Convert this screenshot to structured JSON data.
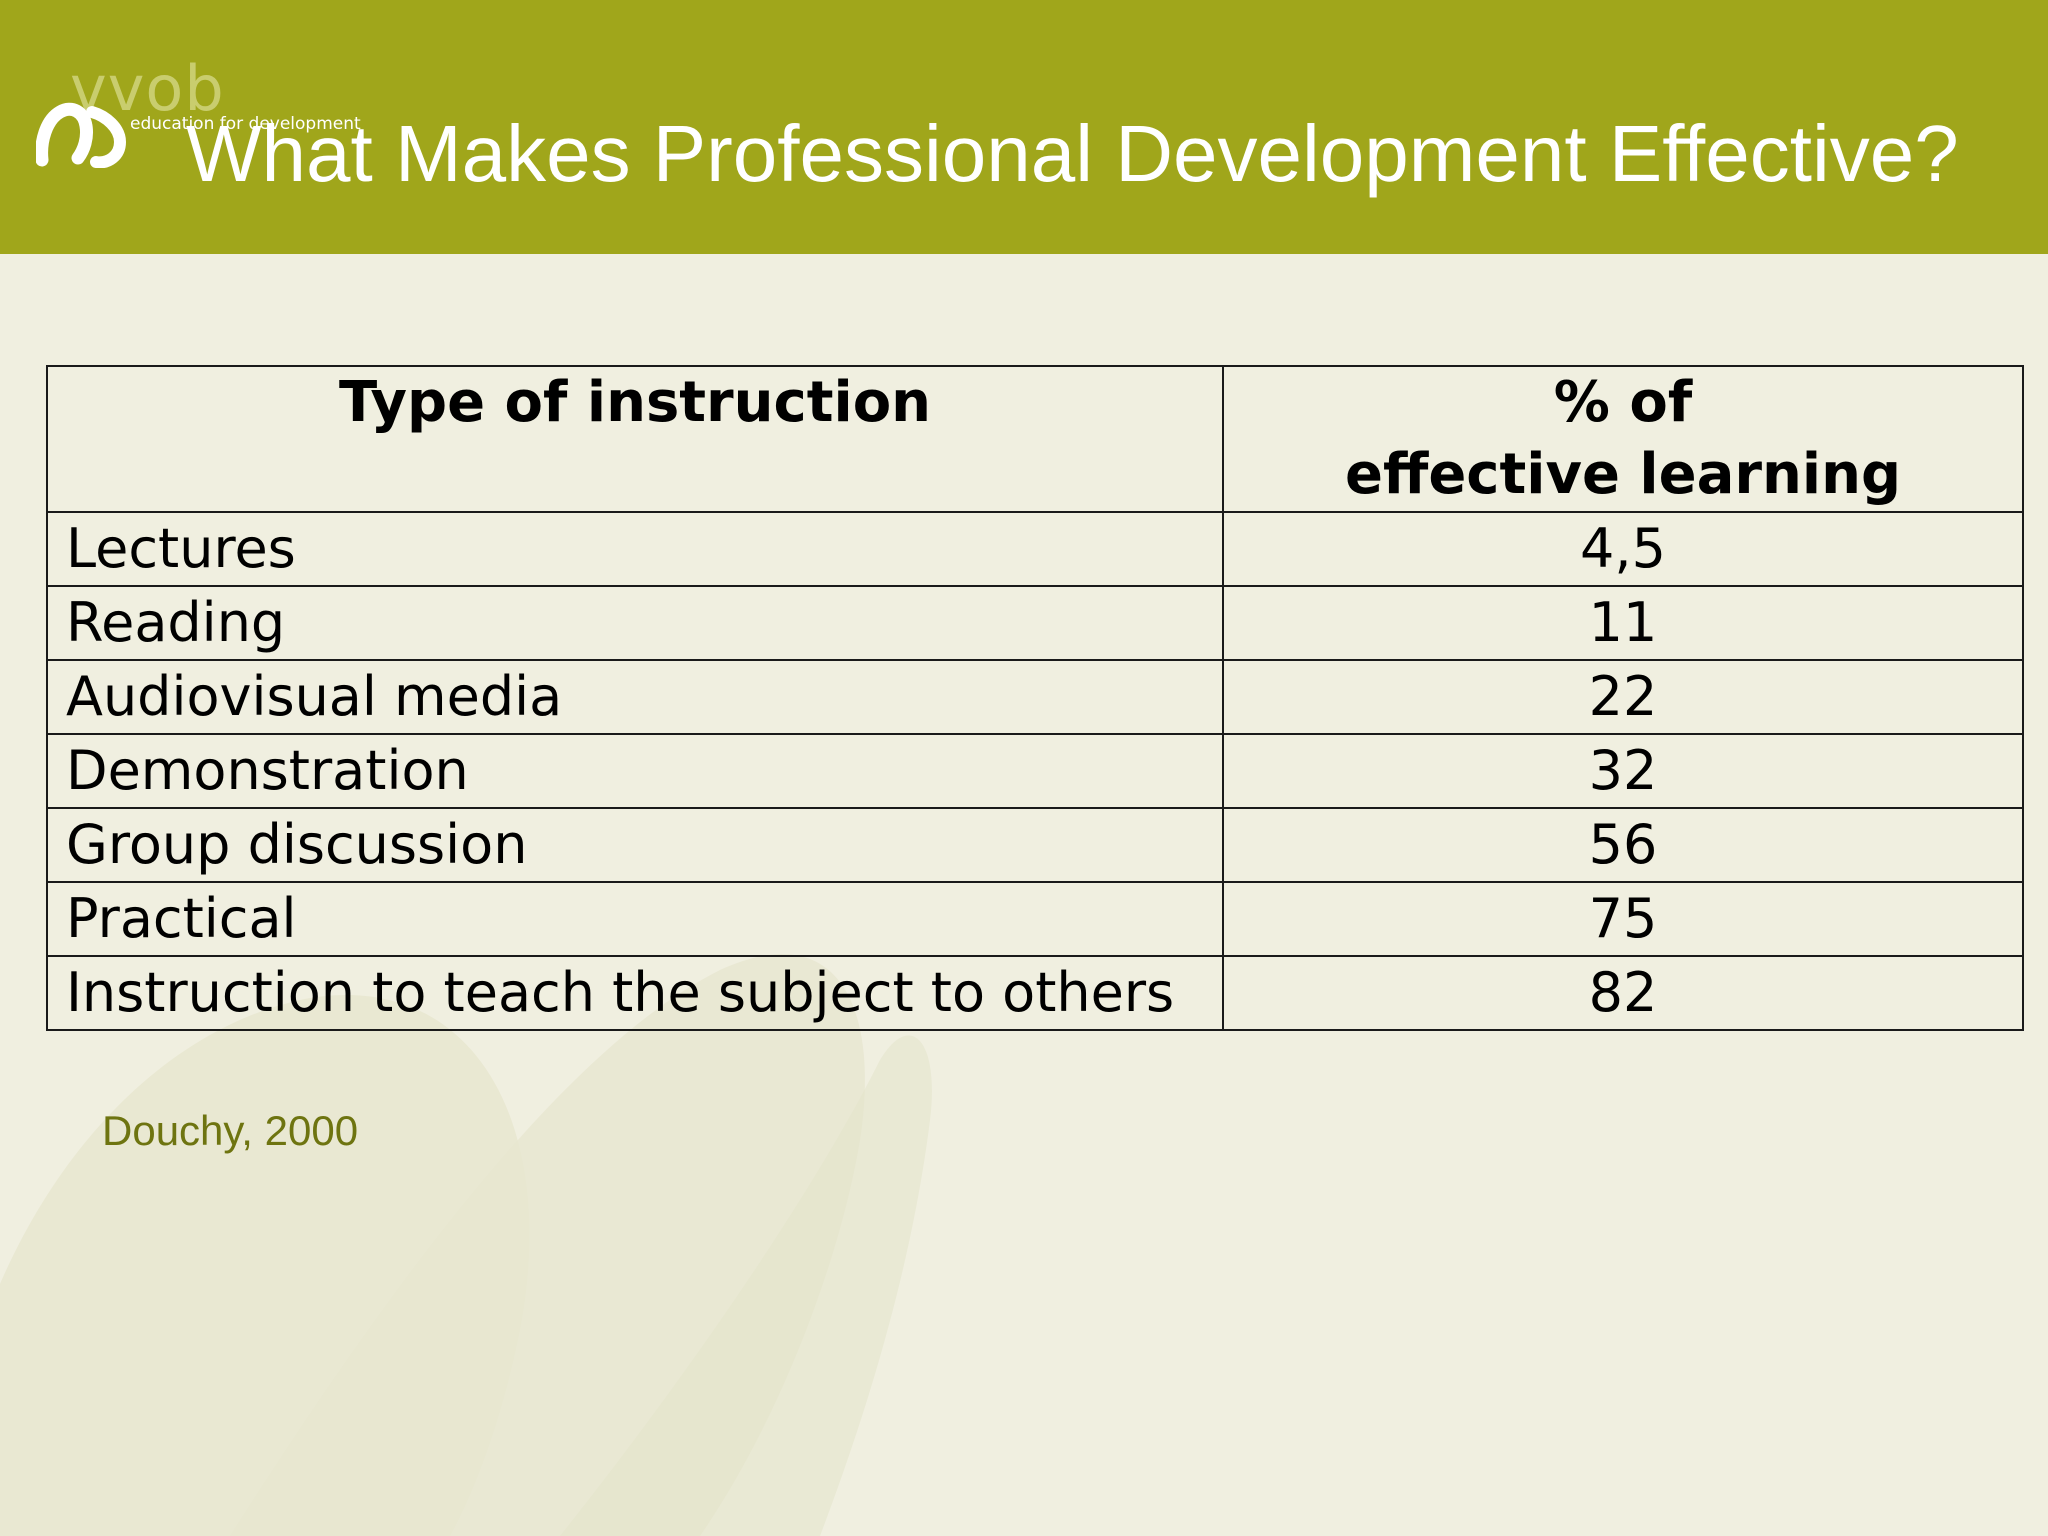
{
  "slide": {
    "title": "What Makes Professional Development Effective?",
    "logo": {
      "wordmark": "vvob",
      "tagline": "education for development",
      "icon": "vvob-logo-icon"
    },
    "colors": {
      "header": "#a0a61b",
      "background": "#f0efe0",
      "source_text": "#6e7410"
    }
  },
  "table": {
    "headers": {
      "type": "Type of instruction",
      "percent_line1": "% of",
      "percent_line2": "effective learning"
    },
    "rows": [
      {
        "type": "Lectures",
        "percent": "4,5"
      },
      {
        "type": "Reading",
        "percent": "11"
      },
      {
        "type": "Audiovisual media",
        "percent": "22"
      },
      {
        "type": "Demonstration",
        "percent": "32"
      },
      {
        "type": "Group discussion",
        "percent": "56"
      },
      {
        "type": "Practical",
        "percent": "75"
      },
      {
        "type": "Instruction to teach the subject to others",
        "percent": "82"
      }
    ]
  },
  "source": "Douchy, 2000"
}
